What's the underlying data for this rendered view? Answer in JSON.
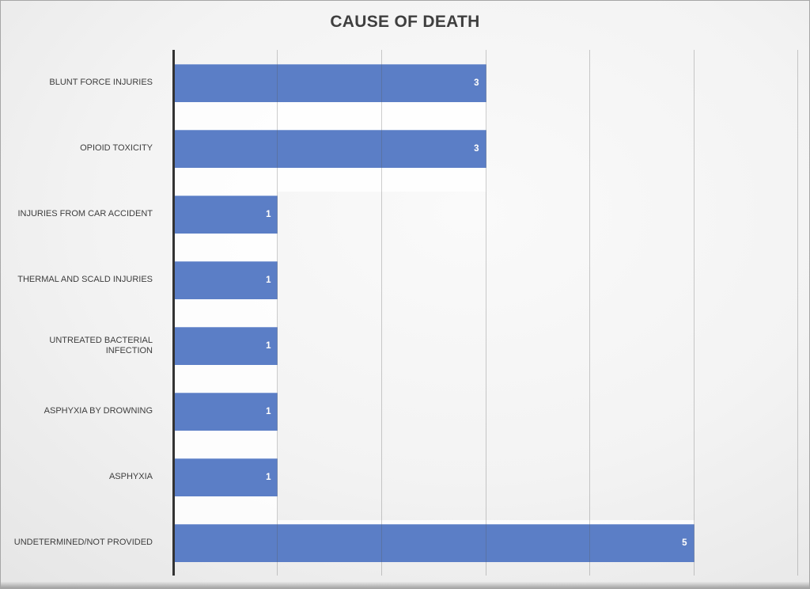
{
  "slide": {
    "title": "CAUSE OF DEATH"
  },
  "colors": {
    "bar_fill": "#5b7ec6",
    "bar_value_text": "#ffffff",
    "title_text": "#3f3f3f",
    "category_text": "#3d3d3d",
    "axis_line": "#333333",
    "gridline": "rgba(90,90,90,0.30)",
    "background_center": "#fafafa",
    "background_edge": "#d2d2d2",
    "bar_halo": "rgba(255,255,255,0.82)"
  },
  "chart_data": {
    "type": "bar",
    "orientation": "horizontal",
    "title": "CAUSE OF DEATH",
    "categories": [
      "BLUNT FORCE INJURIES",
      "OPIOID TOXICITY",
      "INJURIES FROM CAR ACCIDENT",
      "THERMAL AND SCALD INJURIES",
      "UNTREATED BACTERIAL INFECTION",
      "ASPHYXIA BY DROWNING",
      "ASPHYXIA",
      "UNDETERMINED/NOT PROVIDED"
    ],
    "values": [
      3,
      3,
      1,
      1,
      1,
      1,
      1,
      5
    ],
    "data_labels": [
      "3",
      "3",
      "1",
      "1",
      "1",
      "1",
      "1",
      "5"
    ],
    "xlabel": "",
    "ylabel": "",
    "xlim": [
      0,
      6
    ],
    "xtick_interval": 1,
    "grid": true,
    "axis_tick_labels_visible": false,
    "legend": false,
    "data_labels_position": "inside-end"
  }
}
